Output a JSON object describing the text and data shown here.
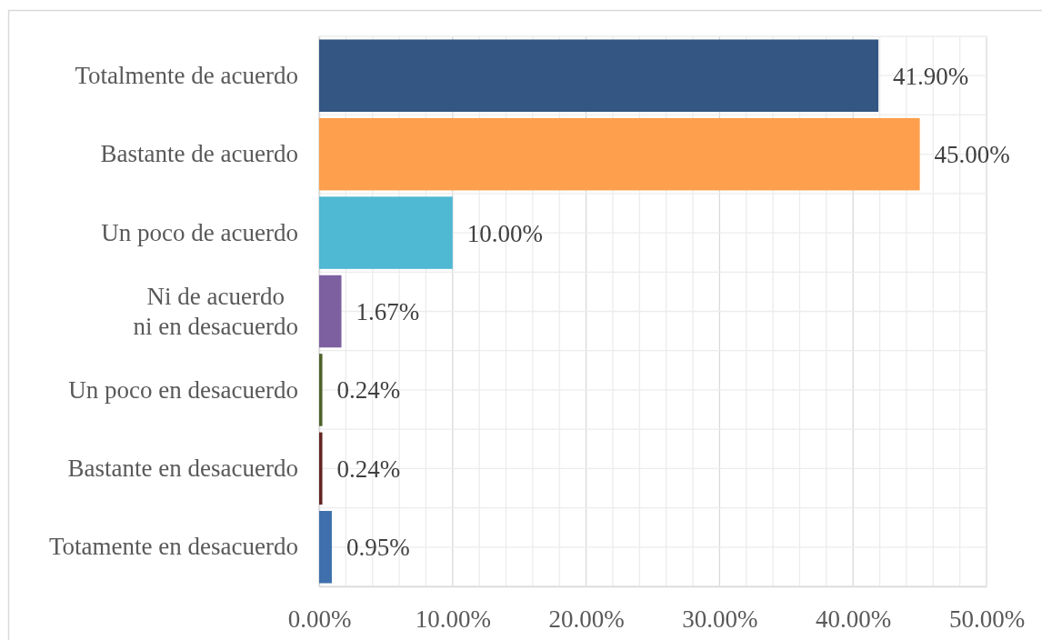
{
  "chart_data": {
    "type": "bar",
    "orientation": "horizontal",
    "categories": [
      "Totalmente de acuerdo",
      "Bastante de acuerdo",
      "Un poco de acuerdo",
      "Ni de acuerdo\nni en desacuerdo",
      "Un poco en desacuerdo",
      "Bastante en desacuerdo",
      "Totamente en desacuerdo"
    ],
    "values": [
      41.9,
      45,
      10,
      1.67,
      0.24,
      0.24,
      0.95
    ],
    "colors": [
      "#335683",
      "#fd9f4c",
      "#4fb8d2",
      "#7d60a0",
      "#4f6228",
      "#632523",
      "#3f70ad"
    ],
    "value_labels": [
      "41.90%",
      "45.00%",
      "10.00%",
      "1.67%",
      "0.24%",
      "0.24%",
      "0.95%"
    ],
    "xlim": [
      0,
      50
    ],
    "xticks": [
      {
        "value": 0,
        "label": "0.00%"
      },
      {
        "value": 2,
        "label": null
      },
      {
        "value": 4,
        "label": null
      },
      {
        "value": 6,
        "label": null
      },
      {
        "value": 8,
        "label": null
      },
      {
        "value": 10,
        "label": "10.00%"
      },
      {
        "value": 12,
        "label": null
      },
      {
        "value": 14,
        "label": null
      },
      {
        "value": 16,
        "label": null
      },
      {
        "value": 18,
        "label": null
      },
      {
        "value": 20,
        "label": "20.00%"
      },
      {
        "value": 22,
        "label": null
      },
      {
        "value": 24,
        "label": null
      },
      {
        "value": 26,
        "label": null
      },
      {
        "value": 28,
        "label": null
      },
      {
        "value": 30,
        "label": "30.00%"
      },
      {
        "value": 32,
        "label": null
      },
      {
        "value": 34,
        "label": null
      },
      {
        "value": 36,
        "label": null
      },
      {
        "value": 38,
        "label": null
      },
      {
        "value": 40,
        "label": "40.00%"
      },
      {
        "value": 42,
        "label": null
      },
      {
        "value": 44,
        "label": null
      },
      {
        "value": 46,
        "label": null
      },
      {
        "value": 48,
        "label": null
      },
      {
        "value": 50,
        "label": "50.00%"
      }
    ],
    "grid": true
  }
}
